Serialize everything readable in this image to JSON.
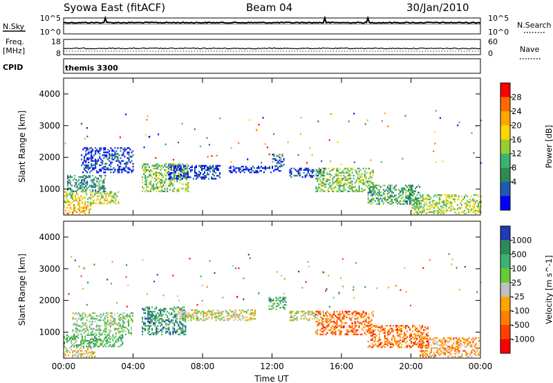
{
  "header": {
    "station": "Syowa East (fitACF)",
    "beam": "Beam 04",
    "date": "30/Jan/2010"
  },
  "summary_panels": {
    "nsky_label": "N.Sky",
    "nsky_ticks": [
      "10^5",
      "10^0"
    ],
    "nsearch_label": "N.Search",
    "nsearch_ticks": [
      "10^5",
      "10^0"
    ],
    "freq_label": "Freq.",
    "freq_unit": "[MHz]",
    "freq_ticks": [
      "18",
      "8"
    ],
    "nave_label": "Nave",
    "nave_ticks": [
      "60",
      "0"
    ],
    "cpid_label": "CPID",
    "cpid_value": "themis 3300"
  },
  "chart_data": [
    {
      "type": "heatmap",
      "panel": "power",
      "ylabel": "Slant Range [km]",
      "xlabel": "Time UT",
      "x_ticks": [
        "00:00",
        "04:00",
        "08:00",
        "12:00",
        "16:00",
        "20:00",
        "00:00"
      ],
      "xlim_hours": [
        0,
        24
      ],
      "ylim_km": [
        180,
        4500
      ],
      "y_ticks": [
        1000,
        2000,
        3000,
        4000
      ],
      "colorbar": {
        "label": "Power [dB]",
        "tick_labels": [
          "28",
          "24",
          "20",
          "16",
          "12",
          "8",
          "4"
        ],
        "colors": [
          "#ff0000",
          "#ff6a00",
          "#ffa500",
          "#ffd700",
          "#9acd32",
          "#3cb371",
          "#2e8b57",
          "#1e5ab4",
          "#0000ff"
        ]
      },
      "echo_regions": [
        {
          "t": [
            0.0,
            1.6
          ],
          "r": [
            200,
            500
          ],
          "level": 0.7
        },
        {
          "t": [
            0.0,
            3.2
          ],
          "r": [
            520,
            900
          ],
          "level": 0.55
        },
        {
          "t": [
            0.2,
            2.4
          ],
          "r": [
            900,
            1400
          ],
          "level": 0.3
        },
        {
          "t": [
            1.0,
            4.0
          ],
          "r": [
            1500,
            2300
          ],
          "level": 0.1
        },
        {
          "t": [
            4.5,
            7.2
          ],
          "r": [
            900,
            1800
          ],
          "level": 0.45
        },
        {
          "t": [
            6.0,
            9.0
          ],
          "r": [
            1300,
            1750
          ],
          "level": 0.12
        },
        {
          "t": [
            9.5,
            12.5
          ],
          "r": [
            1500,
            1700
          ],
          "level": 0.1
        },
        {
          "t": [
            12.0,
            12.7
          ],
          "r": [
            1700,
            2100
          ],
          "level": 0.2
        },
        {
          "t": [
            13.0,
            15.0
          ],
          "r": [
            1350,
            1650
          ],
          "level": 0.15
        },
        {
          "t": [
            14.5,
            17.8
          ],
          "r": [
            900,
            1650
          ],
          "level": 0.45
        },
        {
          "t": [
            17.5,
            20.5
          ],
          "r": [
            500,
            1100
          ],
          "level": 0.35
        },
        {
          "t": [
            20.0,
            24.0
          ],
          "r": [
            200,
            800
          ],
          "level": 0.5
        }
      ]
    },
    {
      "type": "heatmap",
      "panel": "velocity",
      "ylabel": "Slant Range [km]",
      "xlabel": "Time UT",
      "x_ticks": [
        "00:00",
        "04:00",
        "08:00",
        "12:00",
        "16:00",
        "20:00",
        "00:00"
      ],
      "xlim_hours": [
        0,
        24
      ],
      "ylim_km": [
        180,
        4500
      ],
      "y_ticks": [
        1000,
        2000,
        3000,
        4000
      ],
      "colorbar": {
        "label": "Velocity [m s^-1]",
        "tick_labels": [
          "1000",
          "500",
          "100",
          "25",
          "-25",
          "-100",
          "-500",
          "-1000"
        ],
        "colors": [
          "#1e3cb4",
          "#2e8b57",
          "#3cb371",
          "#66cc33",
          "#c0c0c0",
          "#ffa500",
          "#ff7f00",
          "#ff4000",
          "#ff0000"
        ]
      },
      "echo_regions": [
        {
          "t": [
            0.0,
            1.8
          ],
          "r": [
            200,
            500
          ],
          "level": 0.45
        },
        {
          "t": [
            0.0,
            3.4
          ],
          "r": [
            520,
            900
          ],
          "level": 0.7
        },
        {
          "t": [
            0.5,
            4.0
          ],
          "r": [
            900,
            1600
          ],
          "level": 0.6
        },
        {
          "t": [
            4.5,
            7.0
          ],
          "r": [
            900,
            1800
          ],
          "level": 0.8
        },
        {
          "t": [
            6.5,
            11.0
          ],
          "r": [
            1350,
            1700
          ],
          "level": 0.5
        },
        {
          "t": [
            11.8,
            12.8
          ],
          "r": [
            1700,
            2100
          ],
          "level": 0.75
        },
        {
          "t": [
            13.0,
            15.0
          ],
          "r": [
            1350,
            1650
          ],
          "level": 0.5
        },
        {
          "t": [
            14.5,
            17.8
          ],
          "r": [
            900,
            1650
          ],
          "level": 0.25
        },
        {
          "t": [
            17.5,
            21.0
          ],
          "r": [
            500,
            1200
          ],
          "level": 0.25
        },
        {
          "t": [
            20.5,
            24.0
          ],
          "r": [
            200,
            800
          ],
          "level": 0.35
        }
      ]
    }
  ]
}
